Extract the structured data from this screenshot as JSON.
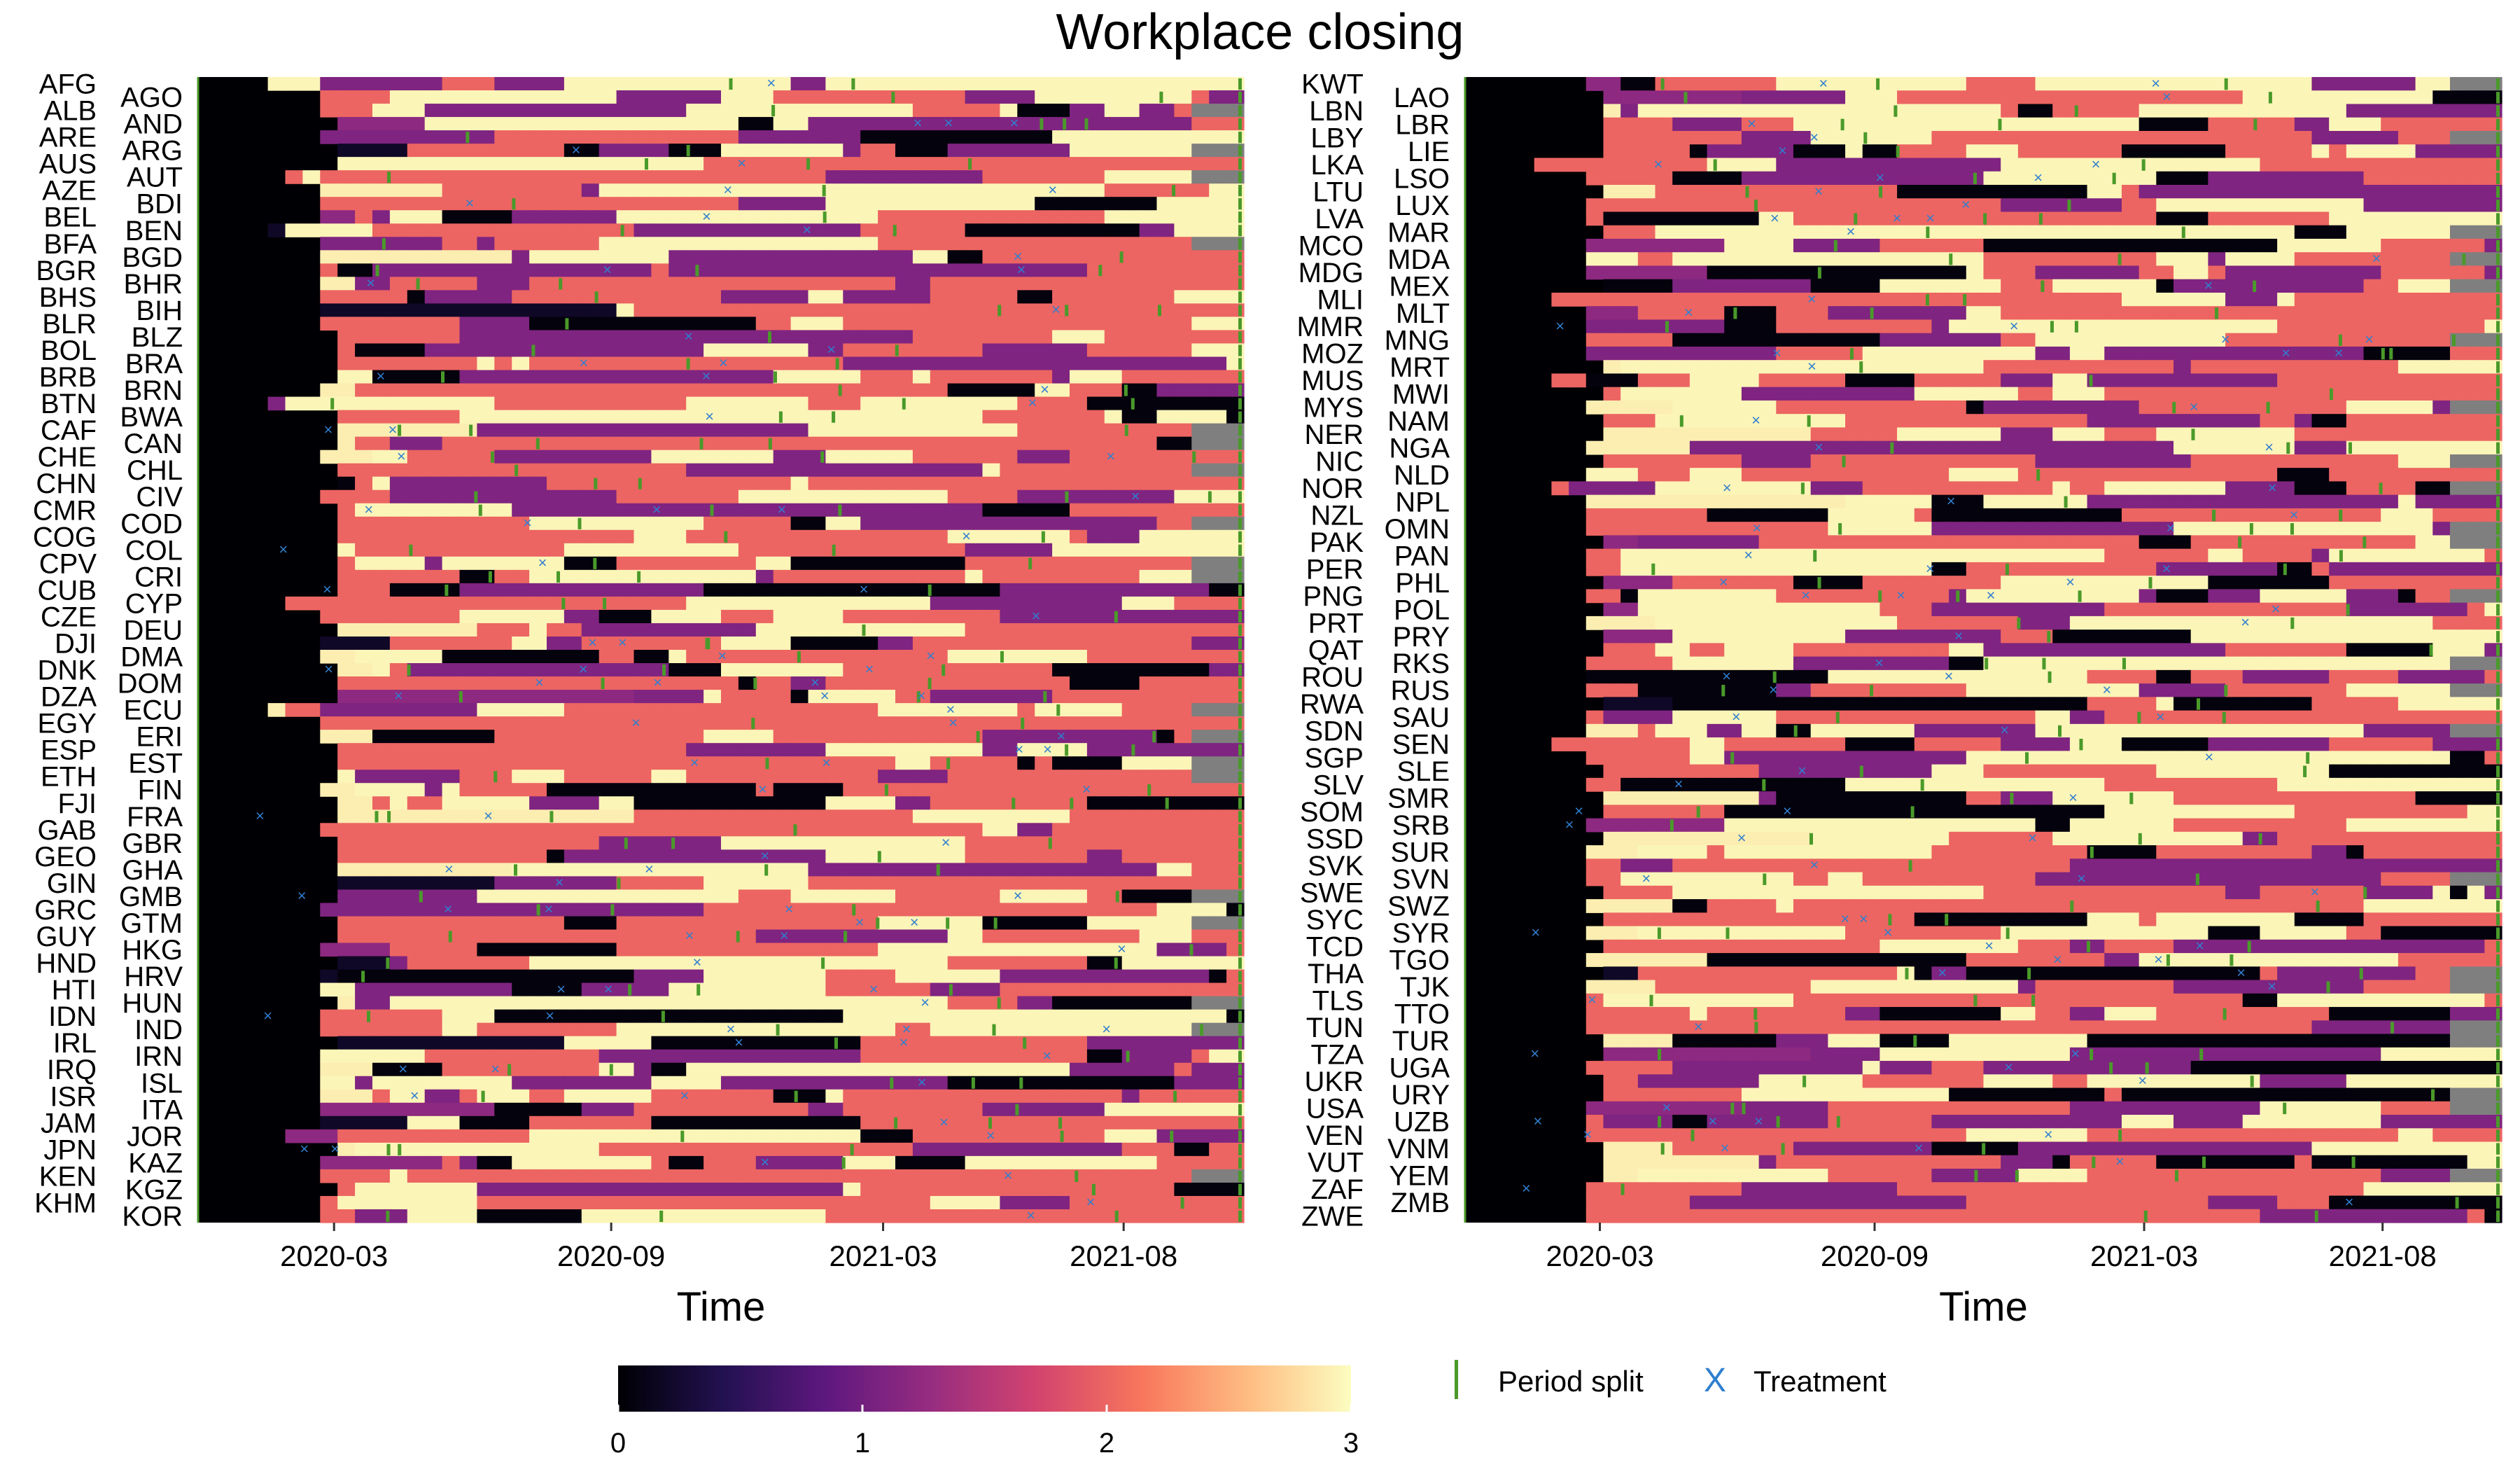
{
  "chart_data": {
    "type": "heatmap",
    "title": "Workplace closing",
    "colorscale": {
      "name": "magma",
      "min": 0,
      "max": 3,
      "ticks": [
        0,
        1,
        2,
        3
      ],
      "colors": [
        "#000004",
        "#221150",
        "#5f187f",
        "#982d80",
        "#d3436e",
        "#f8765c",
        "#febb81",
        "#fcfdbf"
      ],
      "missing_color": "#7f7f7f"
    },
    "legend": {
      "items": [
        {
          "label": "Period split",
          "marker": "green-tick",
          "color": "#4a9a2a"
        },
        {
          "label": "Treatment",
          "marker": "blue-x",
          "color": "#2f7fd0"
        }
      ]
    },
    "x_ticks": [
      "2020-03",
      "2020-09",
      "2021-03",
      "2021-08"
    ],
    "panels": [
      {
        "xlabel": "Time",
        "countries": [
          "AFG",
          "AGO",
          "ALB",
          "AND",
          "ARE",
          "ARG",
          "AUS",
          "AUT",
          "AZE",
          "BDI",
          "BEL",
          "BEN",
          "BFA",
          "BGD",
          "BGR",
          "BHR",
          "BHS",
          "BIH",
          "BLR",
          "BLZ",
          "BOL",
          "BRA",
          "BRB",
          "BRN",
          "BTN",
          "BWA",
          "CAF",
          "CAN",
          "CHE",
          "CHL",
          "CHN",
          "CIV",
          "CMR",
          "COD",
          "COG",
          "COL",
          "CPV",
          "CRI",
          "CUB",
          "CYP",
          "CZE",
          "DEU",
          "DJI",
          "DMA",
          "DNK",
          "DOM",
          "DZA",
          "ECU",
          "EGY",
          "ERI",
          "ESP",
          "EST",
          "ETH",
          "FIN",
          "FJI",
          "FRA",
          "GAB",
          "GBR",
          "GEO",
          "GHA",
          "GIN",
          "GMB",
          "GRC",
          "GTM",
          "GUY",
          "HKG",
          "HND",
          "HRV",
          "HTI",
          "HUN",
          "IDN",
          "IND",
          "IRL",
          "IRN",
          "IRQ",
          "ISL",
          "ISR",
          "ITA",
          "JAM",
          "JOR",
          "JPN",
          "KAZ",
          "KEN",
          "KGZ",
          "KHM",
          "KOR"
        ]
      },
      {
        "xlabel": "Time",
        "countries": [
          "KWT",
          "LAO",
          "LBN",
          "LBR",
          "LBY",
          "LIE",
          "LKA",
          "LSO",
          "LTU",
          "LUX",
          "LVA",
          "MAR",
          "MCO",
          "MDA",
          "MDG",
          "MEX",
          "MLI",
          "MLT",
          "MMR",
          "MNG",
          "MOZ",
          "MRT",
          "MUS",
          "MWI",
          "MYS",
          "NAM",
          "NER",
          "NGA",
          "NIC",
          "NLD",
          "NOR",
          "NPL",
          "NZL",
          "OMN",
          "PAK",
          "PAN",
          "PER",
          "PHL",
          "PNG",
          "POL",
          "PRT",
          "PRY",
          "QAT",
          "RKS",
          "ROU",
          "RUS",
          "RWA",
          "SAU",
          "SDN",
          "SEN",
          "SGP",
          "SLE",
          "SLV",
          "SMR",
          "SOM",
          "SRB",
          "SSD",
          "SUR",
          "SVK",
          "SVN",
          "SWE",
          "SWZ",
          "SYC",
          "SYR",
          "TCD",
          "TGO",
          "THA",
          "TJK",
          "TLS",
          "TTO",
          "TUN",
          "TUR",
          "TZA",
          "UGA",
          "UKR",
          "URY",
          "USA",
          "UZB",
          "VEN",
          "VNM",
          "VUT",
          "YEM",
          "ZAF",
          "ZMB",
          "ZWE"
        ]
      }
    ]
  }
}
